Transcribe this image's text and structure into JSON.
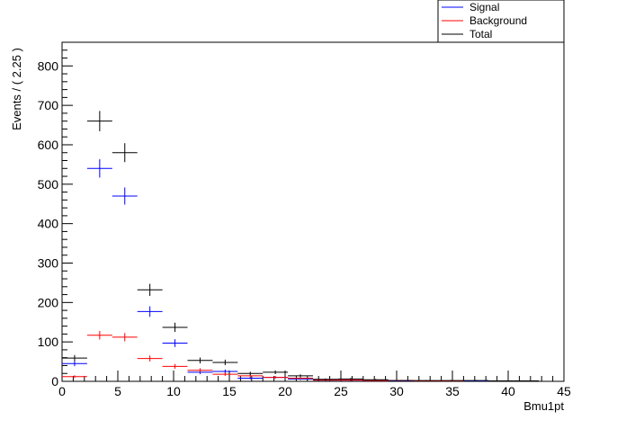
{
  "chart_data": {
    "type": "scatter",
    "title": "",
    "xlabel": "Bmu1pt",
    "ylabel": "Events / ( 2.25 )",
    "xlim": [
      0,
      45
    ],
    "ylim": [
      0,
      860
    ],
    "x_ticks": [
      0,
      5,
      10,
      15,
      20,
      25,
      30,
      35,
      40,
      45
    ],
    "y_ticks": [
      0,
      100,
      200,
      300,
      400,
      500,
      600,
      700,
      800
    ],
    "bin_width": 2.25,
    "x": [
      1.125,
      3.375,
      5.625,
      7.875,
      10.125,
      12.375,
      14.625,
      16.875,
      19.125,
      21.375,
      23.625,
      25.875,
      28.125,
      30.375,
      32.625,
      34.875,
      37.125,
      39.375,
      41.625,
      43.875
    ],
    "legend_position": "top-right",
    "series": [
      {
        "name": "Signal",
        "color": "#0000ff",
        "values": [
          45,
          540,
          470,
          177,
          97,
          23,
          25,
          8,
          10,
          6,
          3,
          3,
          2,
          1,
          1,
          1,
          1,
          0,
          0,
          0
        ]
      },
      {
        "name": "Background",
        "color": "#ff0000",
        "values": [
          12,
          117,
          112,
          58,
          38,
          28,
          18,
          14,
          10,
          8,
          3,
          3,
          2,
          2,
          1,
          1,
          0,
          0,
          0,
          0
        ]
      },
      {
        "name": "Total",
        "color": "#000000",
        "values": [
          59,
          660,
          580,
          232,
          137,
          53,
          48,
          20,
          23,
          14,
          5,
          6,
          4,
          2,
          2,
          2,
          2,
          1,
          1,
          0
        ]
      }
    ]
  }
}
